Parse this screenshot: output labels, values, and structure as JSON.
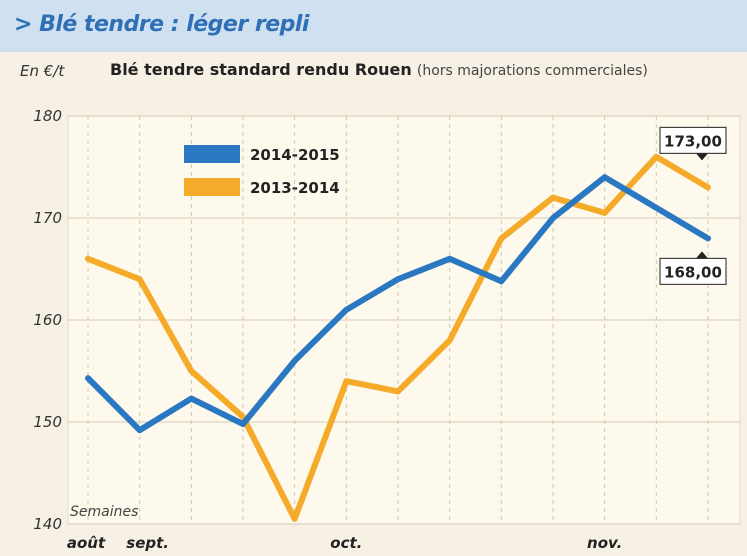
{
  "header": {
    "title": "> Blé tendre : léger repli"
  },
  "chart_data": {
    "type": "line",
    "title": "Blé tendre standard rendu Rouen",
    "subtitle": "(hors majorations commerciales)",
    "ylabel": "En €/t",
    "xlabel": "Semaines",
    "ylim": [
      140,
      180
    ],
    "yticks": [
      180,
      170,
      160,
      150,
      140
    ],
    "x_tick_labels": [
      "août",
      "sept.",
      "oct.",
      "nov."
    ],
    "legend_placement": "top-left",
    "grid": true,
    "series": [
      {
        "name": "2014-2015",
        "color": "#2a78c2",
        "values": [
          154.3,
          149.2,
          152.3,
          149.8,
          156.0,
          161.0,
          164.0,
          166.0,
          163.8,
          170.0,
          174.0,
          171.0,
          168.0
        ]
      },
      {
        "name": "2013-2014",
        "color": "#f5aa2a",
        "values": [
          166.0,
          164.0,
          155.0,
          150.5,
          140.5,
          154.0,
          153.0,
          158.0,
          168.0,
          172.0,
          170.5,
          176.0,
          173.0
        ]
      }
    ],
    "annotations": [
      {
        "text": "173,00",
        "series": "2013-2014"
      },
      {
        "text": "168,00",
        "series": "2014-2015"
      }
    ]
  }
}
